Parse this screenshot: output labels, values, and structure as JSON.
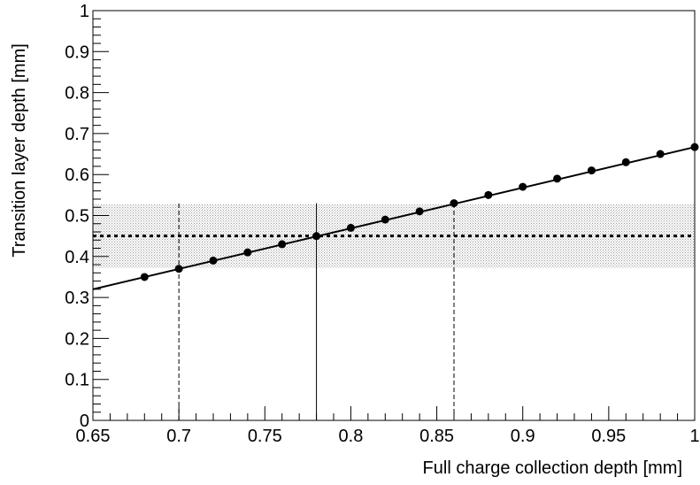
{
  "chart_data": {
    "type": "scatter",
    "xlabel": "Full charge collection depth [mm]",
    "ylabel": "Transition layer depth [mm]",
    "xlim": [
      0.65,
      1.0
    ],
    "ylim": [
      0,
      1
    ],
    "x_ticks": [
      0.65,
      0.7,
      0.75,
      0.8,
      0.85,
      0.9,
      0.95,
      1.0
    ],
    "x_tick_labels": [
      "0.65",
      "0.7",
      "0.75",
      "0.8",
      "0.85",
      "0.9",
      "0.95",
      "1"
    ],
    "y_ticks": [
      0,
      0.1,
      0.2,
      0.3,
      0.4,
      0.5,
      0.6,
      0.7,
      0.8,
      0.9,
      1.0
    ],
    "y_tick_labels": [
      "0",
      "0.1",
      "0.2",
      "0.3",
      "0.4",
      "0.5",
      "0.6",
      "0.7",
      "0.8",
      "0.9",
      "1"
    ],
    "grid": false,
    "series": [
      {
        "style": "line-with-markers",
        "color": "#000000",
        "x": [
          0.68,
          0.7,
          0.72,
          0.74,
          0.76,
          0.78,
          0.8,
          0.82,
          0.84,
          0.86,
          0.88,
          0.9,
          0.92,
          0.94,
          0.96,
          0.98,
          1.0
        ],
        "y": [
          0.35,
          0.37,
          0.39,
          0.41,
          0.43,
          0.45,
          0.47,
          0.49,
          0.51,
          0.53,
          0.55,
          0.57,
          0.59,
          0.61,
          0.63,
          0.65,
          0.667
        ]
      }
    ],
    "fit_line": {
      "x": [
        0.65,
        1.0
      ],
      "y": [
        0.32,
        0.667
      ]
    },
    "horizontal_band": {
      "center": 0.45,
      "low": 0.372,
      "high": 0.528,
      "center_style": "dotted"
    },
    "vertical_markers": [
      {
        "x": 0.7,
        "y_top": 0.53,
        "style": "dashed"
      },
      {
        "x": 0.78,
        "y_top": 0.53,
        "style": "solid"
      },
      {
        "x": 0.86,
        "y_top": 0.53,
        "style": "dashed"
      }
    ]
  }
}
